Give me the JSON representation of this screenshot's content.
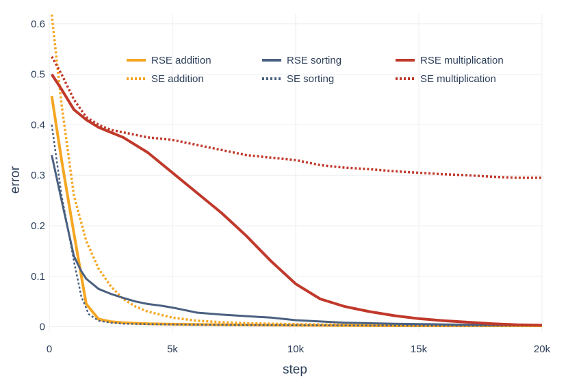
{
  "chart_data": {
    "type": "line",
    "xlabel": "step",
    "ylabel": "error",
    "xlim": [
      0,
      20000
    ],
    "ylim": [
      -0.01,
      0.62
    ],
    "grid": true,
    "legend_position": "top",
    "x_ticks": [
      {
        "value": 0,
        "label": "0"
      },
      {
        "value": 5000,
        "label": "5k"
      },
      {
        "value": 10000,
        "label": "10k"
      },
      {
        "value": 15000,
        "label": "15k"
      },
      {
        "value": 20000,
        "label": "20k"
      }
    ],
    "y_ticks": [
      {
        "value": 0,
        "label": "0"
      },
      {
        "value": 0.1,
        "label": "0.1"
      },
      {
        "value": 0.2,
        "label": "0.2"
      },
      {
        "value": 0.3,
        "label": "0.3"
      },
      {
        "value": 0.4,
        "label": "0.4"
      },
      {
        "value": 0.5,
        "label": "0.5"
      },
      {
        "value": 0.6,
        "label": "0.6"
      }
    ],
    "series": [
      {
        "name": "RSE addition",
        "color": "#f5a623",
        "dash": "solid",
        "x": [
          100,
          500,
          1000,
          1500,
          2000,
          2500,
          3000,
          4000,
          5000,
          7000,
          10000,
          15000,
          20000
        ],
        "y": [
          0.457,
          0.33,
          0.185,
          0.045,
          0.015,
          0.01,
          0.008,
          0.006,
          0.005,
          0.004,
          0.003,
          0.002,
          0.002
        ]
      },
      {
        "name": "SE addition",
        "color": "#f5a623",
        "dash": "dotted",
        "x": [
          100,
          500,
          1000,
          1500,
          2000,
          2500,
          3000,
          3500,
          4000,
          5000,
          6000,
          7000,
          8000,
          10000,
          12000,
          15000,
          20000
        ],
        "y": [
          0.618,
          0.44,
          0.26,
          0.17,
          0.115,
          0.08,
          0.055,
          0.04,
          0.03,
          0.018,
          0.012,
          0.009,
          0.007,
          0.005,
          0.004,
          0.003,
          0.002
        ]
      },
      {
        "name": "RSE sorting",
        "color": "#4a6080",
        "dash": "solid",
        "x": [
          100,
          500,
          1000,
          1300,
          1500,
          2000,
          2500,
          3000,
          3500,
          4000,
          4500,
          5000,
          6000,
          7000,
          8000,
          9000,
          10000,
          12000,
          14000,
          17000,
          20000
        ],
        "y": [
          0.34,
          0.25,
          0.14,
          0.11,
          0.095,
          0.075,
          0.065,
          0.057,
          0.05,
          0.045,
          0.042,
          0.038,
          0.028,
          0.024,
          0.021,
          0.018,
          0.013,
          0.008,
          0.006,
          0.004,
          0.003
        ]
      },
      {
        "name": "SE sorting",
        "color": "#4a6080",
        "dash": "dotted",
        "x": [
          100,
          500,
          1000,
          1300,
          1600,
          2000,
          2500,
          3000,
          4000,
          6000,
          10000,
          15000,
          20000
        ],
        "y": [
          0.4,
          0.26,
          0.13,
          0.06,
          0.025,
          0.012,
          0.008,
          0.006,
          0.005,
          0.004,
          0.003,
          0.002,
          0.002
        ]
      },
      {
        "name": "RSE multiplication",
        "color": "#c0392b",
        "dash": "solid",
        "x": [
          100,
          500,
          1000,
          1500,
          2000,
          2500,
          3000,
          3500,
          4000,
          5000,
          6000,
          7000,
          8000,
          9000,
          10000,
          11000,
          12000,
          13000,
          14000,
          15000,
          16000,
          17000,
          18000,
          19000,
          20000
        ],
        "y": [
          0.5,
          0.47,
          0.43,
          0.41,
          0.395,
          0.385,
          0.375,
          0.36,
          0.345,
          0.305,
          0.265,
          0.225,
          0.18,
          0.13,
          0.085,
          0.055,
          0.04,
          0.03,
          0.022,
          0.016,
          0.012,
          0.009,
          0.006,
          0.004,
          0.003
        ]
      },
      {
        "name": "SE multiplication",
        "color": "#c0392b",
        "dash": "dotted",
        "x": [
          100,
          500,
          1000,
          1500,
          2000,
          2500,
          3000,
          4000,
          5000,
          6000,
          7000,
          8000,
          9000,
          10000,
          11000,
          12000,
          13000,
          14000,
          15000,
          16000,
          17000,
          18000,
          19000,
          20000
        ],
        "y": [
          0.535,
          0.5,
          0.45,
          0.415,
          0.4,
          0.39,
          0.385,
          0.375,
          0.37,
          0.36,
          0.35,
          0.34,
          0.335,
          0.33,
          0.32,
          0.315,
          0.312,
          0.308,
          0.305,
          0.302,
          0.3,
          0.297,
          0.295,
          0.295
        ]
      }
    ]
  }
}
